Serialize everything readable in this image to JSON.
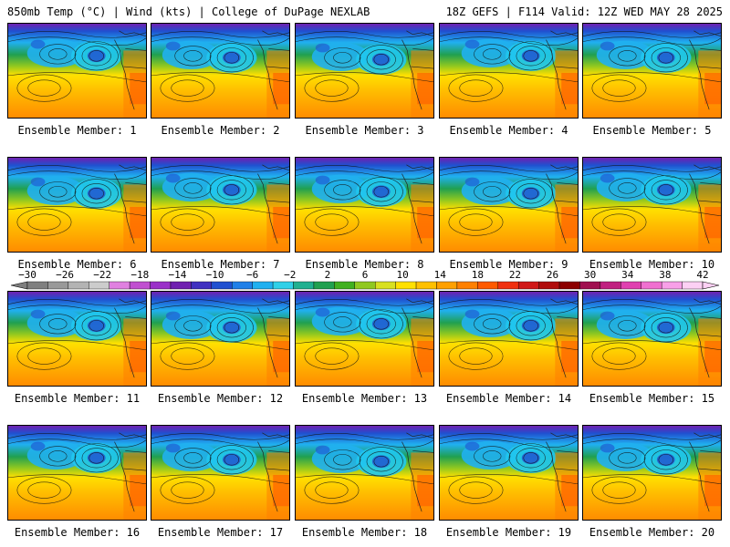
{
  "header": {
    "left": "850mb Temp (°C) | Wind (kts) | College of DuPage NEXLAB",
    "right": "18Z GEFS | F114 Valid: 12Z WED MAY 28 2025"
  },
  "panels": [
    {
      "caption": "Ensemble Member: 1"
    },
    {
      "caption": "Ensemble Member: 2"
    },
    {
      "caption": "Ensemble Member: 3"
    },
    {
      "caption": "Ensemble Member: 4"
    },
    {
      "caption": "Ensemble Member: 5"
    },
    {
      "caption": "Ensemble Member: 6"
    },
    {
      "caption": "Ensemble Member: 7"
    },
    {
      "caption": "Ensemble Member: 8"
    },
    {
      "caption": "Ensemble Member: 9"
    },
    {
      "caption": "Ensemble Member: 10"
    },
    {
      "caption": "Ensemble Member: 11"
    },
    {
      "caption": "Ensemble Member: 12"
    },
    {
      "caption": "Ensemble Member: 13"
    },
    {
      "caption": "Ensemble Member: 14"
    },
    {
      "caption": "Ensemble Member: 15"
    },
    {
      "caption": "Ensemble Member: 16"
    },
    {
      "caption": "Ensemble Member: 17"
    },
    {
      "caption": "Ensemble Member: 18"
    },
    {
      "caption": "Ensemble Member: 19"
    },
    {
      "caption": "Ensemble Member: 20"
    }
  ],
  "colorbar": {
    "tick_labels": [
      "−30",
      "−26",
      "−22",
      "−18",
      "−14",
      "−10",
      "−6",
      "−2",
      "2",
      "6",
      "10",
      "14",
      "18",
      "22",
      "26",
      "30",
      "34",
      "38",
      "42"
    ],
    "colors": [
      "#7f7f7f",
      "#999999",
      "#b3b3b3",
      "#cccccc",
      "#e080e0",
      "#c050d0",
      "#9a30c8",
      "#7020b0",
      "#4030c0",
      "#2050d0",
      "#2080e8",
      "#20b0f0",
      "#30d0e8",
      "#20b090",
      "#20a050",
      "#40b020",
      "#90c820",
      "#d8e020",
      "#ffe000",
      "#ffc000",
      "#ffa000",
      "#ff8000",
      "#ff5a00",
      "#f03010",
      "#d01818",
      "#b00c0c",
      "#8c0000",
      "#a01050",
      "#c02080",
      "#e040b0",
      "#f070d0",
      "#f8a0e8",
      "#fcd0f4"
    ]
  }
}
